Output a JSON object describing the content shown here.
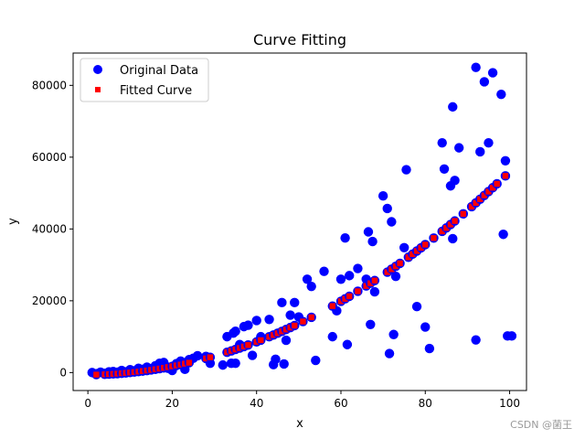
{
  "chart_data": {
    "type": "scatter",
    "title": "Curve Fitting",
    "xlabel": "x",
    "ylabel": "y",
    "xlim": [
      -3.5,
      104
    ],
    "ylim": [
      -5000,
      89000
    ],
    "xticks": [
      0,
      20,
      40,
      60,
      80,
      100
    ],
    "yticks": [
      0,
      20000,
      40000,
      60000,
      80000
    ],
    "grid": false,
    "legend_position": "top-left",
    "series": [
      {
        "name": "Original Data",
        "marker": "circle",
        "color": "#0000ff",
        "points": [
          [
            1,
            0
          ],
          [
            2,
            -300
          ],
          [
            3,
            100
          ],
          [
            4,
            -200
          ],
          [
            5,
            200
          ],
          [
            6,
            300
          ],
          [
            7,
            100
          ],
          [
            8,
            600
          ],
          [
            9,
            200
          ],
          [
            10,
            800
          ],
          [
            11,
            500
          ],
          [
            12,
            1200
          ],
          [
            13,
            900
          ],
          [
            14,
            1500
          ],
          [
            15,
            1100
          ],
          [
            16,
            1900
          ],
          [
            17,
            2600
          ],
          [
            18,
            2800
          ],
          [
            19,
            1200
          ],
          [
            20,
            600
          ],
          [
            21,
            2500
          ],
          [
            22,
            3200
          ],
          [
            23,
            900
          ],
          [
            24,
            3600
          ],
          [
            25,
            4000
          ],
          [
            26,
            4700
          ],
          [
            28,
            4500
          ],
          [
            29,
            2600
          ],
          [
            32,
            2100
          ],
          [
            33,
            10000
          ],
          [
            34,
            2600
          ],
          [
            34.5,
            11000
          ],
          [
            35,
            11500
          ],
          [
            36,
            7800
          ],
          [
            37,
            12800
          ],
          [
            38,
            13200
          ],
          [
            39,
            4800
          ],
          [
            40,
            14500
          ],
          [
            41,
            10000
          ],
          [
            43,
            14800
          ],
          [
            44,
            2200
          ],
          [
            44.5,
            3700
          ],
          [
            46,
            19500
          ],
          [
            46.5,
            2400
          ],
          [
            47,
            9000
          ],
          [
            48,
            16000
          ],
          [
            49,
            19500
          ],
          [
            50,
            15500
          ],
          [
            52,
            26000
          ],
          [
            53,
            24000
          ],
          [
            54,
            3400
          ],
          [
            56,
            28200
          ],
          [
            58,
            10000
          ],
          [
            59,
            17200
          ],
          [
            60,
            26000
          ],
          [
            61,
            37500
          ],
          [
            61.5,
            7800
          ],
          [
            62,
            27000
          ],
          [
            64,
            29000
          ],
          [
            66,
            26000
          ],
          [
            66.5,
            39200
          ],
          [
            67,
            13400
          ],
          [
            67.5,
            36500
          ],
          [
            68,
            22500
          ],
          [
            70,
            49200
          ],
          [
            71,
            45700
          ],
          [
            71.5,
            5300
          ],
          [
            72,
            42000
          ],
          [
            72.5,
            10600
          ],
          [
            73,
            26800
          ],
          [
            75,
            34800
          ],
          [
            75.5,
            56500
          ],
          [
            78,
            18400
          ],
          [
            80,
            12700
          ],
          [
            81,
            6700
          ],
          [
            84,
            64000
          ],
          [
            84.5,
            56700
          ],
          [
            86,
            52000
          ],
          [
            86.5,
            37300
          ],
          [
            87,
            53500
          ],
          [
            86.5,
            74000
          ],
          [
            88,
            62600
          ],
          [
            92,
            85000
          ],
          [
            93,
            61500
          ],
          [
            94,
            81000
          ],
          [
            95,
            64000
          ],
          [
            96,
            83500
          ],
          [
            98,
            77500
          ],
          [
            98.5,
            38500
          ],
          [
            92,
            9100
          ],
          [
            99,
            59000
          ],
          [
            99.5,
            10200
          ],
          [
            100.5,
            10200
          ],
          [
            35,
            2600
          ]
        ]
      },
      {
        "name": "Fitted Curve",
        "marker": "square",
        "color": "#ff0000",
        "x": [
          2,
          4,
          5,
          6,
          7,
          8,
          9,
          10,
          11,
          12,
          13,
          14,
          15,
          16,
          17,
          18,
          19,
          20,
          21,
          22,
          23,
          24,
          28,
          29,
          33,
          34,
          35,
          36,
          37,
          38,
          40,
          41,
          43,
          44,
          45,
          46,
          47,
          48,
          49,
          51,
          53,
          58,
          60,
          61,
          62,
          64,
          66,
          67,
          68,
          71,
          72,
          73,
          74,
          76,
          77,
          78,
          79,
          80,
          82,
          84,
          85,
          86,
          87,
          89,
          91,
          92,
          93,
          94,
          95,
          96,
          97,
          99
        ],
        "coeffs": [
          5.6,
          5,
          -600
        ]
      }
    ]
  },
  "watermark": "CSDN @菌王"
}
